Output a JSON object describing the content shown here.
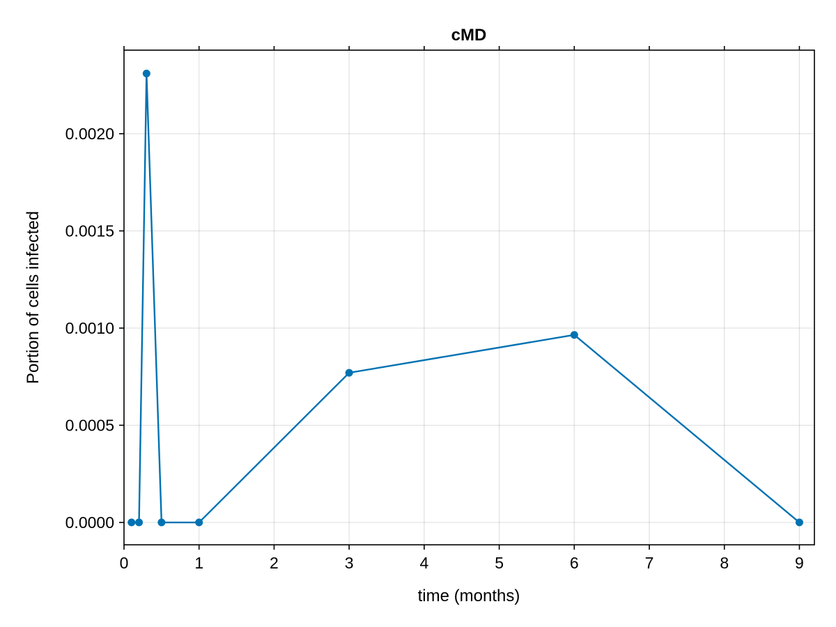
{
  "chart_data": {
    "type": "line",
    "title": "cMD",
    "xlabel": "time (months)",
    "ylabel": "Portion of cells infected",
    "xlim": [
      0,
      9.2
    ],
    "ylim": [
      -0.000115,
      0.00243
    ],
    "x_ticks": [
      0,
      1,
      2,
      3,
      4,
      5,
      6,
      7,
      8,
      9
    ],
    "x_tick_labels": [
      "0",
      "1",
      "2",
      "3",
      "4",
      "5",
      "6",
      "7",
      "8",
      "9"
    ],
    "y_ticks": [
      0,
      0.0005,
      0.001,
      0.0015,
      0.002
    ],
    "y_tick_labels": [
      "0.0000",
      "0.0005",
      "0.0010",
      "0.0015",
      "0.0020"
    ],
    "grid": true,
    "series": [
      {
        "x": [
          0.1,
          0.2,
          0.3,
          0.5,
          1,
          3,
          6,
          9
        ],
        "y": [
          0,
          0,
          0.00231,
          0,
          0,
          0.00077,
          0.000965,
          0
        ],
        "color": "#0072b2"
      }
    ]
  }
}
